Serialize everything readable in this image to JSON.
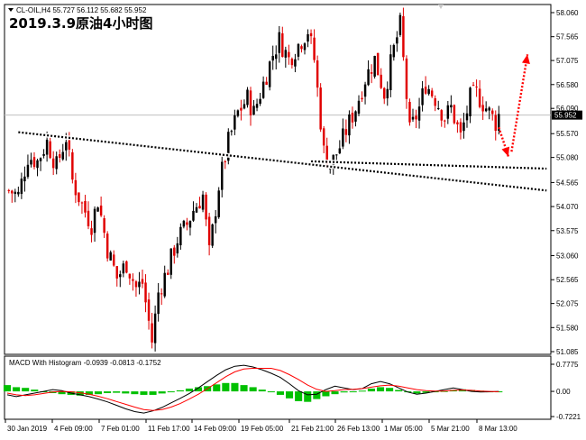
{
  "chart_data": [
    {
      "type": "candlestick",
      "title": "2019.3.9原油4小时图",
      "header": "CL-OIL,H4 55.727 56.112 55.682 55.952",
      "symbol": "CL-OIL,H4",
      "last_price": "55.952",
      "ylim": [
        51.085,
        58.06
      ],
      "y_ticks": [
        "58.060",
        "57.565",
        "57.075",
        "56.580",
        "56.090",
        "55.952",
        "55.570",
        "55.080",
        "54.565",
        "54.070",
        "53.575",
        "53.060",
        "52.565",
        "52.075",
        "51.580",
        "51.085"
      ],
      "x_ticks": [
        "30 Jan 2019",
        "4 Feb 09:00",
        "7 Feb 01:00",
        "11 Feb 17:00",
        "14 Feb 09:00",
        "19 Feb 05:00",
        "21 Feb 21:00",
        "26 Feb 13:00",
        "1 Mar 05:00",
        "5 Mar 21:00",
        "8 Mar 13:00"
      ],
      "colors": {
        "bull": "#000000",
        "bear": "#e00000",
        "trend": "#000000",
        "arrow": "#ff0000",
        "price_line": "#c0c0c0"
      },
      "close_path": [
        [
          0,
          54.4
        ],
        [
          3,
          54.3
        ],
        [
          6,
          55.1
        ],
        [
          9,
          55.0
        ],
        [
          12,
          55.4
        ],
        [
          15,
          54.9
        ],
        [
          18,
          55.5
        ],
        [
          20,
          54.6
        ],
        [
          23,
          54.1
        ],
        [
          26,
          53.7
        ],
        [
          28,
          54.2
        ],
        [
          31,
          53.2
        ],
        [
          34,
          52.6
        ],
        [
          37,
          52.9
        ],
        [
          40,
          52.4
        ],
        [
          42,
          52.5
        ],
        [
          45,
          51.3
        ],
        [
          47,
          52.3
        ],
        [
          50,
          52.8
        ],
        [
          53,
          53.4
        ],
        [
          56,
          53.7
        ],
        [
          58,
          54.0
        ],
        [
          61,
          54.3
        ],
        [
          63,
          53.1
        ],
        [
          66,
          54.5
        ],
        [
          69,
          55.4
        ],
        [
          72,
          56.0
        ],
        [
          75,
          56.3
        ],
        [
          77,
          56.0
        ],
        [
          80,
          56.6
        ],
        [
          83,
          57.2
        ],
        [
          85,
          57.5
        ],
        [
          88,
          57.1
        ],
        [
          91,
          57.4
        ],
        [
          94,
          57.7
        ],
        [
          96,
          57.1
        ],
        [
          99,
          55.2
        ],
        [
          101,
          54.9
        ],
        [
          104,
          55.3
        ],
        [
          107,
          55.8
        ],
        [
          109,
          56.1
        ],
        [
          112,
          56.7
        ],
        [
          115,
          57.1
        ],
        [
          118,
          56.4
        ],
        [
          121,
          57.3
        ],
        [
          123,
          57.8
        ],
        [
          126,
          55.6
        ],
        [
          129,
          56.1
        ],
        [
          131,
          56.6
        ],
        [
          134,
          56.3
        ],
        [
          137,
          55.9
        ],
        [
          139,
          56.1
        ],
        [
          142,
          55.5
        ],
        [
          145,
          56.3
        ],
        [
          147,
          56.4
        ],
        [
          150,
          56.1
        ],
        [
          153,
          55.8
        ],
        [
          154,
          55.95
        ]
      ],
      "trendlines": [
        {
          "from": [
            3,
            55.6
          ],
          "to": [
            169,
            54.4
          ]
        },
        {
          "from": [
            95,
            55.0
          ],
          "to": [
            169,
            54.85
          ]
        }
      ],
      "projection_arrows": [
        {
          "from": [
            154,
            55.7
          ],
          "to": [
            157,
            55.1
          ]
        },
        {
          "from": [
            158,
            55.2
          ],
          "to": [
            163,
            57.2
          ]
        }
      ]
    },
    {
      "type": "line",
      "title": "MACD With Histogram -0.0939 -0.0813 -0.1752",
      "ylim": [
        -0.7221,
        0.7775
      ],
      "y_ticks": [
        "0.7775",
        "0.00",
        "-0.7221"
      ],
      "series": [
        {
          "color": "#000000",
          "values": [
            -0.1,
            -0.15,
            -0.1,
            -0.05,
            0.0,
            0.05,
            0.02,
            -0.05,
            -0.1,
            -0.15,
            -0.22,
            -0.3,
            -0.4,
            -0.5,
            -0.58,
            -0.62,
            -0.56,
            -0.46,
            -0.33,
            -0.2,
            -0.06,
            0.1,
            0.28,
            0.46,
            0.62,
            0.72,
            0.75,
            0.7,
            0.62,
            0.52,
            0.4,
            0.22,
            0.02,
            -0.1,
            -0.08,
            0.05,
            0.15,
            0.1,
            0.05,
            0.08,
            0.22,
            0.28,
            0.22,
            0.1,
            -0.02,
            -0.08,
            -0.05,
            0.0,
            0.05,
            0.1,
            0.05,
            0.0,
            -0.02,
            -0.01,
            0.0
          ]
        },
        {
          "color": "#ff0000",
          "values": [
            -0.05,
            -0.1,
            -0.12,
            -0.1,
            -0.06,
            -0.02,
            0.0,
            -0.01,
            -0.04,
            -0.08,
            -0.14,
            -0.21,
            -0.29,
            -0.37,
            -0.45,
            -0.52,
            -0.55,
            -0.52,
            -0.45,
            -0.35,
            -0.22,
            -0.08,
            0.08,
            0.25,
            0.42,
            0.56,
            0.64,
            0.66,
            0.66,
            0.66,
            0.6,
            0.48,
            0.34,
            0.18,
            0.06,
            0.0,
            0.02,
            0.05,
            0.06,
            0.08,
            0.12,
            0.16,
            0.18,
            0.15,
            0.1,
            0.05,
            0.02,
            0.01,
            0.01,
            0.03,
            0.04,
            0.03,
            0.01,
            0.0,
            -0.01
          ]
        }
      ],
      "histogram": {
        "color": "#00c000",
        "values": [
          0.18,
          0.12,
          0.1,
          0.05,
          0.0,
          -0.05,
          -0.08,
          -0.1,
          -0.12,
          -0.1,
          -0.08,
          -0.05,
          -0.04,
          -0.06,
          -0.08,
          -0.1,
          -0.1,
          -0.06,
          -0.02,
          0.03,
          0.08,
          0.12,
          0.15,
          0.2,
          0.24,
          0.24,
          0.18,
          0.12,
          0.05,
          -0.02,
          -0.1,
          -0.2,
          -0.28,
          -0.3,
          -0.22,
          -0.14,
          -0.08,
          -0.03,
          0.0,
          0.02,
          0.08,
          0.12,
          0.1,
          0.04,
          -0.02,
          -0.06,
          -0.04,
          -0.02,
          0.01,
          0.04,
          0.06,
          0.04,
          0.02,
          0.0,
          -0.02
        ]
      }
    }
  ]
}
